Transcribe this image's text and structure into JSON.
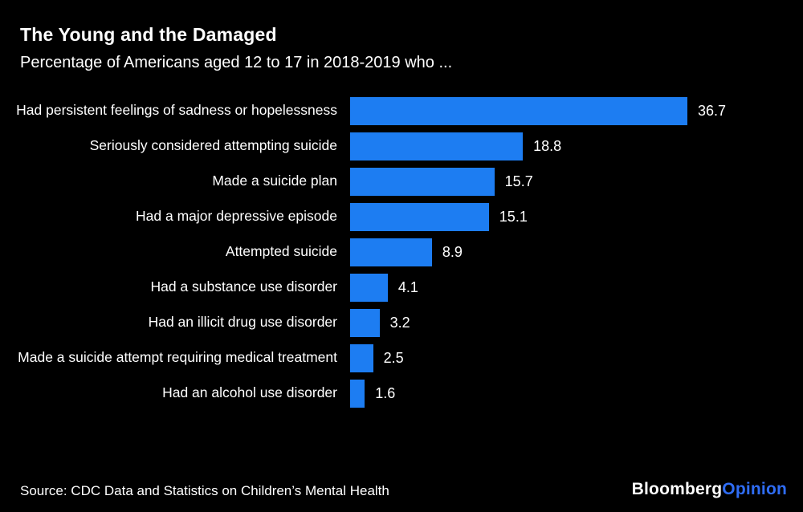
{
  "chart_data": {
    "type": "bar",
    "orientation": "horizontal",
    "title": "The Young and the Damaged",
    "subtitle": "Percentage of Americans aged 12 to 17 in 2018-2019 who ...",
    "categories": [
      "Had persistent feelings of sadness or hopelessness",
      "Seriously considered attempting suicide",
      "Made a suicide plan",
      "Had a major depressive episode",
      "Attempted suicide",
      "Had a substance use disorder",
      "Had an illicit drug use disorder",
      "Made a suicide attempt requiring medical treatment",
      "Had an alcohol use disorder"
    ],
    "values": [
      36.7,
      18.8,
      15.7,
      15.1,
      8.9,
      4.1,
      3.2,
      2.5,
      1.6
    ],
    "xlim": [
      0,
      40
    ],
    "bar_color": "#1d7df2",
    "background_color": "#000000",
    "text_color": "#ffffff",
    "grid": false,
    "legend": false,
    "value_labels": "right-of-bar"
  },
  "footer": {
    "source": "Source: CDC Data and Statistics on Children’s Mental Health",
    "logo_primary": "Bloomberg",
    "logo_secondary": "Opinion",
    "logo_secondary_color": "#2f6df6"
  }
}
